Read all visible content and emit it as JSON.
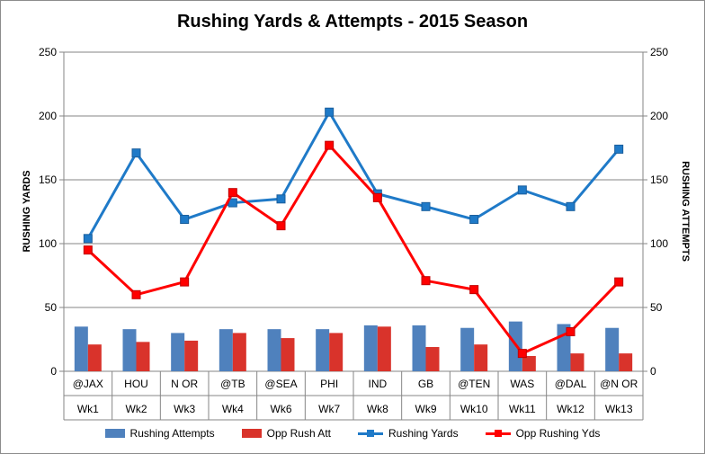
{
  "chart_data": {
    "type": "bar+line",
    "title": "Rushing Yards & Attempts - 2015 Season",
    "ylabel_left": "RUSHING YARDS",
    "ylabel_right": "RUSHING ATTEMPTS",
    "ylim_left": [
      0,
      250
    ],
    "ylim_right": [
      0,
      250
    ],
    "yticks": [
      0,
      50,
      100,
      150,
      200,
      250
    ],
    "categories": [
      {
        "opponent": "@JAX",
        "week": "Wk1"
      },
      {
        "opponent": "HOU",
        "week": "Wk2"
      },
      {
        "opponent": "N OR",
        "week": "Wk3"
      },
      {
        "opponent": "@TB",
        "week": "Wk4"
      },
      {
        "opponent": "@SEA",
        "week": "Wk6"
      },
      {
        "opponent": "PHI",
        "week": "Wk7"
      },
      {
        "opponent": "IND",
        "week": "Wk8"
      },
      {
        "opponent": "GB",
        "week": "Wk9"
      },
      {
        "opponent": "@TEN",
        "week": "Wk10"
      },
      {
        "opponent": "WAS",
        "week": "Wk11"
      },
      {
        "opponent": "@DAL",
        "week": "Wk12"
      },
      {
        "opponent": "@N OR",
        "week": "Wk13"
      }
    ],
    "grid": "horizontal major",
    "legend_position": "bottom",
    "series": [
      {
        "name": "Rushing Attempts",
        "kind": "bar",
        "color": "#4f81bd",
        "values": [
          35,
          33,
          30,
          33,
          33,
          33,
          36,
          36,
          34,
          39,
          37,
          34
        ]
      },
      {
        "name": "Opp Rush Att",
        "kind": "bar",
        "color": "#d9332b",
        "values": [
          21,
          23,
          24,
          30,
          26,
          30,
          35,
          19,
          21,
          12,
          14,
          14
        ]
      },
      {
        "name": "Rushing Yards",
        "kind": "line",
        "color": "#1f7ac8",
        "values": [
          104,
          171,
          119,
          132,
          135,
          203,
          139,
          129,
          119,
          142,
          129,
          174
        ]
      },
      {
        "name": "Opp Rushing Yds",
        "kind": "line",
        "color": "#ff0000",
        "values": [
          95,
          60,
          70,
          140,
          114,
          177,
          136,
          71,
          64,
          14,
          31,
          70
        ]
      }
    ]
  }
}
